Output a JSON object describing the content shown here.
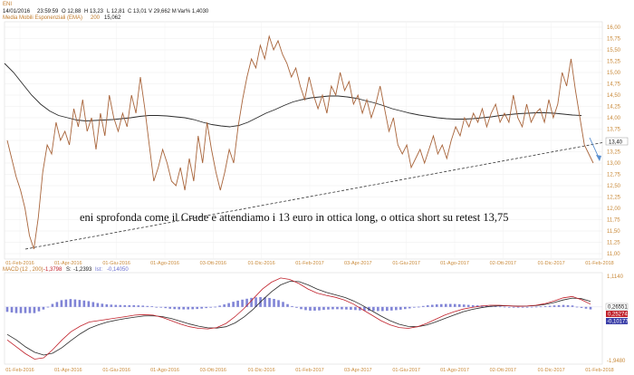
{
  "header": {
    "symbol": "ENI",
    "date": "14/01/2016",
    "time": "23:59:59",
    "open": "O 12,88",
    "high": "H 13,23",
    "low": "L 12,81",
    "close": "C 13,01",
    "volume": "V 29,662 M",
    "change": "Var% 1,4030",
    "ema_label": "Media Mobili Esponenziali (EMA)",
    "ema_period": "200",
    "ema_value": "15,062"
  },
  "annotation": "eni  sprofonda come il Crude e attendiamo i 13 euro in ottica long, o ottica short su retest 13,75",
  "colors": {
    "price": "#a8643a",
    "ema": "#2b2b2b",
    "axis_text": "#c98a3a",
    "grid": "#e6e6e6",
    "trendline": "#333333",
    "arrow": "#5a8fd0",
    "macd_line": "#c0202a",
    "signal_line": "#2a2a2a",
    "histogram": "#6a6fcf"
  },
  "chart_data": [
    {
      "type": "line",
      "y_ticks": [
        "16,00",
        "15,75",
        "15,50",
        "15,25",
        "15,00",
        "14,75",
        "14,50",
        "14,25",
        "14,00",
        "13,75",
        "13,50",
        "13,25",
        "13,00",
        "12,75",
        "12,50",
        "12,25",
        "12,00",
        "11,75",
        "11,50",
        "11,25",
        "11,00"
      ],
      "ylim": [
        11.0,
        16.0
      ],
      "x_tick_labels": [
        "01-Feb-2016",
        "01-Apr-2016",
        "01-Giu-2016",
        "01-Ago-2016",
        "03-Ott-2016",
        "01-Dic-2016",
        "01-Feb-2017",
        "03-Apr-2017",
        "01-Giu-2017",
        "01-Ago-2017",
        "02-Ott-2017",
        "01-Dic-2017",
        "01-Feb-2018"
      ],
      "last_price_label": "13,40",
      "series": [
        {
          "role": "price",
          "values": [
            13.5,
            13.1,
            12.7,
            12.4,
            12.0,
            11.4,
            11.1,
            11.8,
            12.8,
            13.4,
            13.2,
            13.9,
            13.5,
            13.7,
            13.4,
            14.2,
            13.8,
            14.4,
            13.7,
            14.0,
            13.3,
            14.1,
            13.6,
            14.5,
            14.0,
            13.7,
            14.1,
            13.8,
            14.5,
            14.1,
            14.9,
            14.2,
            13.4,
            12.6,
            12.9,
            13.3,
            13.0,
            12.6,
            12.5,
            12.9,
            12.4,
            13.1,
            12.6,
            13.6,
            13.0,
            13.9,
            13.3,
            12.8,
            12.4,
            12.8,
            13.3,
            13.0,
            13.8,
            14.4,
            14.9,
            15.3,
            15.1,
            15.6,
            15.3,
            15.8,
            15.5,
            15.7,
            15.4,
            15.2,
            14.9,
            15.1,
            14.7,
            14.4,
            14.9,
            14.5,
            14.2,
            14.5,
            14.1,
            14.7,
            14.5,
            15.0,
            14.6,
            14.8,
            14.3,
            14.5,
            14.1,
            14.4,
            14.0,
            14.3,
            14.7,
            14.2,
            13.7,
            14.0,
            13.4,
            13.2,
            13.4,
            12.9,
            13.1,
            13.3,
            13.0,
            13.3,
            13.6,
            13.2,
            13.4,
            13.1,
            13.5,
            13.8,
            13.6,
            14.0,
            13.8,
            14.1,
            13.9,
            14.2,
            13.8,
            14.1,
            14.3,
            13.9,
            14.1,
            13.9,
            14.5,
            14.0,
            13.8,
            14.3,
            13.9,
            14.1,
            14.2,
            13.9,
            14.4,
            14.0,
            14.3,
            15.0,
            14.7,
            15.3,
            14.6,
            14.0,
            13.4,
            13.2,
            13.0
          ]
        },
        {
          "role": "ema",
          "values": [
            15.2,
            15.0,
            14.75,
            14.5,
            14.3,
            14.15,
            14.05,
            14.0,
            13.95,
            13.93,
            13.94,
            13.95,
            13.96,
            13.98,
            14.0,
            14.03,
            14.05,
            14.05,
            14.04,
            14.02,
            14.0,
            13.96,
            13.9,
            13.85,
            13.82,
            13.8,
            13.83,
            13.9,
            14.0,
            14.1,
            14.18,
            14.27,
            14.35,
            14.4,
            14.44,
            14.46,
            14.48,
            14.48,
            14.46,
            14.43,
            14.38,
            14.33,
            14.27,
            14.2,
            14.15,
            14.1,
            14.06,
            14.03,
            14.0,
            13.98,
            13.97,
            13.97,
            13.98,
            14.0,
            14.02,
            14.05,
            14.07,
            14.09,
            14.1,
            14.11,
            14.11,
            14.1,
            14.08,
            14.06,
            14.05
          ]
        }
      ],
      "trendline": {
        "from": [
          0.0,
          11.1
        ],
        "to": [
          1.0,
          13.45
        ]
      }
    },
    {
      "type": "line",
      "title": "MACD",
      "params": "(12 , 200)",
      "macd_value": "-1,3798",
      "signal_value": "-1,2393",
      "hist_value": "-0,14050",
      "y_ticks": [
        "1,1140",
        "-1,9480"
      ],
      "ylim": [
        -1.948,
        1.114
      ],
      "right_labels": {
        "top": "0,26551",
        "mid": "0,25274",
        "bot": "-0,10177"
      },
      "x_tick_labels": [
        "01-Feb-2016",
        "01-Apr-2016",
        "01-Giu-2016",
        "01-Ago-2016",
        "03-Ott-2016",
        "01-Dic-2016",
        "01-Feb-2017",
        "03-Apr-2017",
        "01-Giu-2017",
        "01-Ago-2017",
        "02-Ott-2017",
        "01-Dic-2017",
        "01-Feb-2018"
      ],
      "series": [
        {
          "role": "macd",
          "values": [
            -1.2,
            -1.45,
            -1.7,
            -1.9,
            -1.85,
            -1.55,
            -1.2,
            -0.9,
            -0.7,
            -0.55,
            -0.5,
            -0.45,
            -0.4,
            -0.35,
            -0.3,
            -0.28,
            -0.3,
            -0.38,
            -0.5,
            -0.62,
            -0.72,
            -0.78,
            -0.8,
            -0.75,
            -0.6,
            -0.35,
            -0.05,
            0.3,
            0.65,
            0.9,
            1.05,
            1.0,
            0.85,
            0.65,
            0.5,
            0.42,
            0.35,
            0.25,
            0.1,
            -0.1,
            -0.3,
            -0.5,
            -0.65,
            -0.75,
            -0.78,
            -0.72,
            -0.6,
            -0.45,
            -0.3,
            -0.18,
            -0.08,
            -0.02,
            0.03,
            0.06,
            0.06,
            0.04,
            0.02,
            0.03,
            0.06,
            0.12,
            0.22,
            0.33,
            0.38,
            0.26,
            0.1
          ]
        },
        {
          "role": "signal",
          "values": [
            -1.0,
            -1.2,
            -1.45,
            -1.65,
            -1.75,
            -1.68,
            -1.48,
            -1.22,
            -0.98,
            -0.78,
            -0.65,
            -0.55,
            -0.48,
            -0.42,
            -0.37,
            -0.33,
            -0.32,
            -0.35,
            -0.42,
            -0.52,
            -0.62,
            -0.7,
            -0.76,
            -0.77,
            -0.72,
            -0.58,
            -0.36,
            -0.08,
            0.25,
            0.55,
            0.8,
            0.93,
            0.92,
            0.8,
            0.65,
            0.53,
            0.44,
            0.35,
            0.22,
            0.05,
            -0.14,
            -0.33,
            -0.5,
            -0.63,
            -0.71,
            -0.72,
            -0.66,
            -0.55,
            -0.42,
            -0.3,
            -0.18,
            -0.09,
            -0.03,
            0.02,
            0.04,
            0.04,
            0.03,
            0.03,
            0.05,
            0.09,
            0.16,
            0.25,
            0.32,
            0.3,
            0.2
          ]
        }
      ]
    }
  ]
}
